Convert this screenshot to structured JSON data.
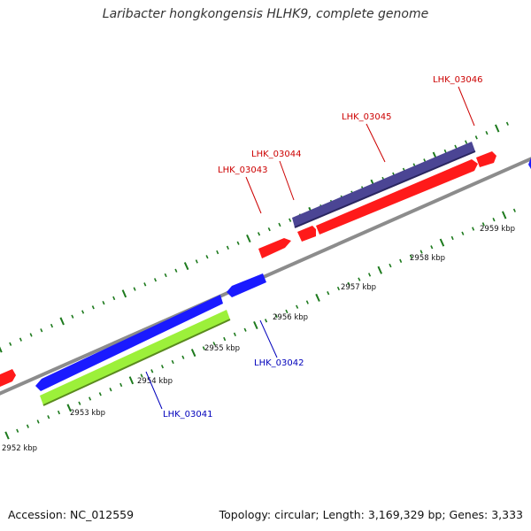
{
  "title": "Laribacter hongkongensis HLHK9, complete genome",
  "footer": {
    "accession": "Accession: NC_012559",
    "summary": "Topology: circular; Length: 3,169,329 bp; Genes: 3,333"
  },
  "colors": {
    "forward_gene": "#ff1a1a",
    "reverse_gene": "#1a1aff",
    "forward_cds": "#4b4594",
    "reverse_cds": "#9cf03a",
    "backbone": "#8c8c8c",
    "ticks": "#1d7a1d",
    "forward_label": "#cc0000",
    "reverse_label": "#0000bb"
  },
  "scale_labels": [
    "2952 kbp",
    "2953 kbp",
    "2954 kbp",
    "2955 kbp",
    "2956 kbp",
    "2957 kbp",
    "2958 kbp",
    "2959 kbp"
  ],
  "gene_labels": {
    "forward": [
      "LHK_03043",
      "LHK_03044",
      "LHK_03045",
      "LHK_03046"
    ],
    "reverse": [
      "LHK_03041",
      "LHK_03042"
    ]
  }
}
